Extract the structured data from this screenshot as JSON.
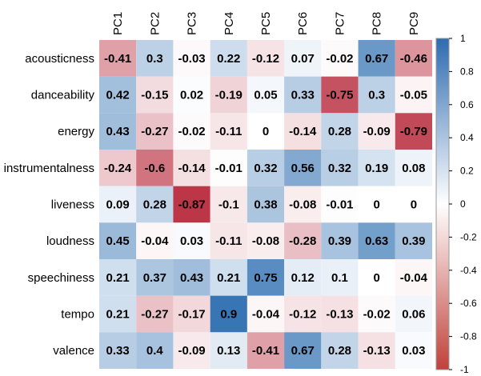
{
  "chart_data": {
    "type": "heatmap",
    "title": "",
    "rows": [
      "acousticness",
      "danceability",
      "energy",
      "instrumentalness",
      "liveness",
      "loudness",
      "speechiness",
      "tempo",
      "valence"
    ],
    "columns": [
      "PC1",
      "PC2",
      "PC3",
      "PC4",
      "PC5",
      "PC6",
      "PC7",
      "PC8",
      "PC9"
    ],
    "values": [
      [
        -0.41,
        0.3,
        -0.03,
        0.22,
        -0.12,
        0.07,
        -0.02,
        0.67,
        -0.46
      ],
      [
        0.42,
        -0.15,
        0.02,
        -0.19,
        0.05,
        0.33,
        -0.75,
        0.3,
        -0.05
      ],
      [
        0.43,
        -0.27,
        -0.02,
        -0.11,
        0,
        -0.14,
        0.28,
        -0.09,
        -0.79
      ],
      [
        -0.24,
        -0.6,
        -0.14,
        -0.01,
        0.32,
        0.56,
        0.32,
        0.19,
        0.08
      ],
      [
        0.09,
        0.28,
        -0.87,
        -0.1,
        0.38,
        -0.08,
        -0.01,
        0,
        0
      ],
      [
        0.45,
        -0.04,
        0.03,
        -0.11,
        -0.08,
        -0.28,
        0.39,
        0.63,
        0.39
      ],
      [
        0.21,
        0.37,
        0.43,
        0.21,
        0.75,
        0.12,
        0.1,
        0,
        -0.04
      ],
      [
        0.21,
        -0.27,
        -0.17,
        0.9,
        -0.04,
        -0.12,
        -0.13,
        -0.02,
        0.06
      ],
      [
        0.33,
        0.4,
        -0.09,
        0.13,
        -0.41,
        0.67,
        0.28,
        -0.13,
        0.03
      ]
    ],
    "value_labels": [
      [
        "-0.41",
        "0.3",
        "-0.03",
        "0.22",
        "-0.12",
        "0.07",
        "-0.02",
        "0.67",
        "-0.46"
      ],
      [
        "0.42",
        "-0.15",
        "0.02",
        "-0.19",
        "0.05",
        "0.33",
        "-0.75",
        "0.3",
        "-0.05"
      ],
      [
        "0.43",
        "-0.27",
        "-0.02",
        "-0.11",
        "0",
        "-0.14",
        "0.28",
        "-0.09",
        "-0.79"
      ],
      [
        "-0.24",
        "-0.6",
        "-0.14",
        "-0.01",
        "0.32",
        "0.56",
        "0.32",
        "0.19",
        "0.08"
      ],
      [
        "0.09",
        "0.28",
        "-0.87",
        "-0.1",
        "0.38",
        "-0.08",
        "-0.01",
        "0",
        "0"
      ],
      [
        "0.45",
        "-0.04",
        "0.03",
        "-0.11",
        "-0.08",
        "-0.28",
        "0.39",
        "0.63",
        "0.39"
      ],
      [
        "0.21",
        "0.37",
        "0.43",
        "0.21",
        "0.75",
        "0.12",
        "0.1",
        "0",
        "-0.04"
      ],
      [
        "0.21",
        "-0.27",
        "-0.17",
        "0.9",
        "-0.04",
        "-0.12",
        "-0.13",
        "-0.02",
        "0.06"
      ],
      [
        "0.33",
        "0.4",
        "-0.09",
        "0.13",
        "-0.41",
        "0.67",
        "0.28",
        "-0.13",
        "0.03"
      ]
    ],
    "colorbar": {
      "range": [
        -1,
        1
      ],
      "ticks": [
        -1,
        -0.8,
        -0.6,
        -0.4,
        -0.2,
        0,
        0.2,
        0.4,
        0.6,
        0.8,
        1
      ],
      "tick_labels": [
        "-1",
        "-0.8",
        "-0.6",
        "-0.4",
        "-0.2",
        "0",
        "0.2",
        "0.4",
        "0.6",
        "0.8",
        "1"
      ],
      "placement": "right"
    },
    "colors": {
      "negative": "#B2182B",
      "mid": "#FFFFFF",
      "positive": "#2166AC",
      "colorbar_negative": "#C0413A",
      "colorbar_positive": "#2E6BB0"
    },
    "grid": false,
    "column_label_rotation": "vertical"
  }
}
